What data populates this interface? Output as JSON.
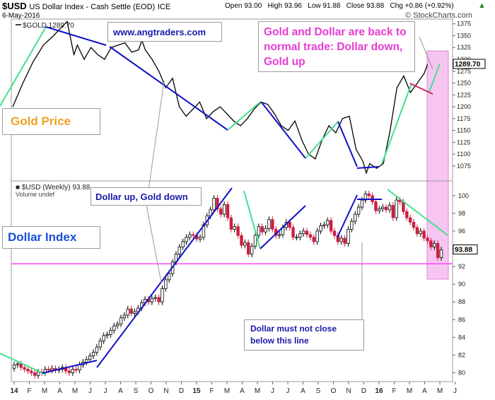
{
  "header": {
    "symbol": "$USD",
    "name": "US Dollar Index - Cash Settle (EOD)",
    "exchange": "ICE",
    "date": "6-May-2016",
    "stats": "Open 93.00   High 93.96   Low 91.88   Close 93.88   Chg +0.86 (+0.92%)",
    "copyright": "© StockCharts.com",
    "trend_label": "▲"
  },
  "annotations": {
    "website": "www.angtraders.com",
    "gold_title": "Gold Price",
    "dollar_title": "Dollar Index",
    "headline": "Gold and Dollar are back to normal trade: Dollar down, Gold up",
    "dollar_up": "Dollar up, Gold down",
    "must_not_close": "Dollar must not close below this line"
  },
  "colors": {
    "gold_line": "#000000",
    "up_candle": "#000000",
    "down_candle": "#cc1f3f",
    "trend_down": "#1010c8",
    "trend_up": "#40e090",
    "trend_red": "#e0205a",
    "support": "#ff33ff",
    "highlight": "#f6c6f0",
    "headline_text": "#e63cd0",
    "gold_title_text": "#f0a020",
    "dollar_title_text": "#1a4fd6",
    "box_text": "#1a1aa8"
  },
  "chart_data": [
    {
      "type": "line",
      "legend": "$GOLD 1289.70",
      "last_value_label": "1289.70",
      "y_ticks": [
        1075,
        1100,
        1125,
        1150,
        1175,
        1200,
        1225,
        1250,
        1275,
        1300,
        1325,
        1350,
        1375
      ],
      "ylim": [
        1045,
        1385
      ],
      "x_index_range": [
        0,
        125
      ],
      "x": [
        0,
        3,
        6,
        9,
        12,
        14,
        16,
        17,
        18,
        19,
        21,
        23,
        25,
        27,
        29,
        31,
        33,
        35,
        37,
        38,
        39,
        41,
        43,
        45,
        47,
        49,
        51,
        53,
        55,
        57,
        59,
        61,
        63,
        65,
        67,
        69,
        71,
        73,
        75,
        77,
        79,
        81,
        83,
        85,
        87,
        89,
        91,
        93,
        95,
        97,
        99,
        101,
        103,
        104,
        105,
        107,
        109,
        111,
        113,
        115,
        117,
        119,
        121,
        122
      ],
      "values": [
        1200,
        1250,
        1295,
        1330,
        1350,
        1365,
        1380,
        1345,
        1310,
        1330,
        1300,
        1325,
        1310,
        1300,
        1325,
        1330,
        1335,
        1315,
        1320,
        1340,
        1320,
        1300,
        1275,
        1240,
        1260,
        1200,
        1180,
        1195,
        1210,
        1175,
        1190,
        1200,
        1185,
        1170,
        1160,
        1175,
        1195,
        1210,
        1205,
        1185,
        1160,
        1150,
        1170,
        1130,
        1100,
        1090,
        1130,
        1160,
        1145,
        1175,
        1180,
        1110,
        1085,
        1060,
        1080,
        1070,
        1080,
        1150,
        1240,
        1265,
        1230,
        1250,
        1270,
        1290
      ]
    },
    {
      "type": "candlestick",
      "legend": "$USD (Weekly) 93.88",
      "sublegend": "Volume undef",
      "last_value_label": "93.88",
      "support_level": 92.3,
      "y_ticks": [
        80,
        82,
        84,
        86,
        88,
        90,
        92,
        94,
        96,
        98,
        100
      ],
      "ylim": [
        79,
        101.5
      ],
      "x_labels": [
        "14",
        "F",
        "M",
        "A",
        "M",
        "J",
        "J",
        "A",
        "S",
        "O",
        "N",
        "D",
        "15",
        "F",
        "M",
        "A",
        "M",
        "J",
        "J",
        "A",
        "S",
        "O",
        "N",
        "D",
        "16",
        "F",
        "M",
        "A",
        "M",
        "J"
      ],
      "close": [
        80.9,
        81.0,
        80.6,
        80.4,
        80.2,
        80.0,
        79.7,
        80.1,
        80.0,
        80.4,
        80.3,
        80.5,
        80.3,
        80.4,
        80.6,
        80.2,
        80.0,
        80.4,
        80.3,
        80.9,
        81.2,
        81.5,
        81.9,
        82.3,
        82.9,
        83.6,
        84.2,
        84.3,
        84.8,
        85.3,
        85.5,
        86.2,
        86.5,
        87.2,
        86.7,
        86.9,
        87.3,
        87.9,
        88.3,
        88.0,
        88.4,
        88.5,
        88.0,
        89.5,
        90.5,
        91.2,
        92.5,
        93.4,
        94.2,
        94.8,
        95.3,
        95.6,
        95.5,
        95.1,
        95.3,
        96.7,
        97.7,
        98.4,
        99.7,
        98.5,
        97.9,
        99.0,
        97.5,
        96.2,
        96.5,
        95.5,
        94.4,
        94.7,
        93.4,
        94.3,
        95.5,
        96.5,
        95.9,
        96.3,
        97.3,
        96.2,
        95.5,
        95.6,
        96.4,
        97.0,
        96.4,
        95.3,
        95.3,
        95.7,
        96.0,
        95.6,
        95.3,
        94.8,
        96.0,
        96.6,
        96.7,
        97.2,
        96.0,
        95.5,
        94.8,
        95.2,
        94.6,
        96.2,
        97.1,
        97.9,
        98.7,
        99.5,
        100.2,
        100.0,
        99.3,
        98.3,
        98.5,
        98.7,
        98.4,
        98.9,
        97.5,
        99.5,
        99.3,
        98.2,
        97.5,
        97.0,
        96.4,
        95.7,
        96.0,
        95.2,
        94.9,
        94.2,
        94.6,
        93.0,
        93.88
      ],
      "open": [
        80.5,
        80.9,
        81.0,
        80.6,
        80.4,
        80.2,
        80.0,
        79.7,
        80.1,
        80.0,
        80.4,
        80.3,
        80.5,
        80.3,
        80.4,
        80.6,
        80.2,
        80.0,
        80.4,
        80.3,
        80.9,
        81.2,
        81.5,
        81.9,
        82.3,
        82.9,
        83.6,
        84.2,
        84.3,
        84.8,
        85.3,
        85.5,
        86.2,
        86.5,
        87.2,
        86.7,
        86.9,
        87.3,
        87.9,
        88.3,
        88.0,
        88.4,
        88.5,
        88.0,
        89.5,
        90.5,
        91.2,
        92.5,
        93.4,
        94.2,
        94.8,
        95.3,
        95.6,
        95.5,
        95.1,
        95.3,
        96.7,
        97.7,
        98.4,
        99.7,
        98.5,
        97.9,
        99.0,
        97.5,
        96.2,
        96.5,
        95.5,
        94.4,
        94.7,
        93.4,
        94.3,
        95.5,
        96.5,
        95.9,
        96.3,
        97.3,
        96.2,
        95.5,
        95.6,
        96.4,
        97.0,
        96.4,
        95.3,
        95.3,
        95.7,
        96.0,
        95.6,
        95.3,
        94.8,
        96.0,
        96.6,
        96.7,
        97.2,
        96.0,
        95.5,
        94.8,
        95.2,
        94.6,
        96.2,
        97.1,
        97.9,
        98.7,
        99.5,
        100.2,
        100.0,
        99.3,
        98.3,
        98.5,
        98.7,
        98.4,
        98.9,
        97.5,
        99.5,
        99.3,
        98.2,
        97.5,
        97.0,
        96.4,
        95.7,
        96.0,
        95.2,
        94.9,
        94.2,
        94.6,
        93.0
      ]
    }
  ]
}
